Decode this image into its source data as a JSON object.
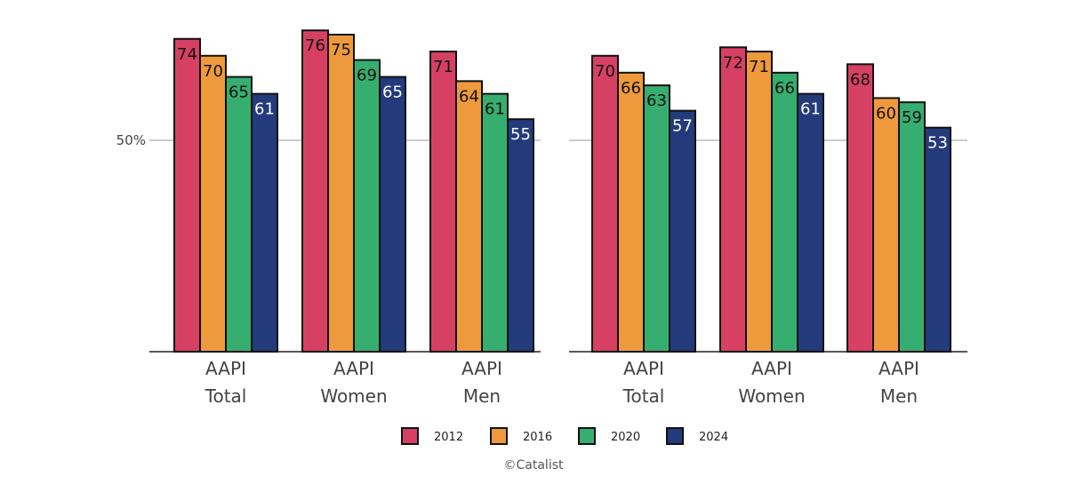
{
  "colors": {
    "2012": "#d64163",
    "2016": "#ee9a3c",
    "2020": "#36ae70",
    "2024": "#233a7b",
    "gridline": "#9a9a9a",
    "axis": "#222222",
    "bar_outline": "#111111"
  },
  "chart_data": [
    {
      "type": "bar",
      "categories": [
        "AAPI Total",
        "AAPI Women",
        "AAPI Men"
      ],
      "series": [
        {
          "name": "2012",
          "values": [
            74,
            76,
            71
          ]
        },
        {
          "name": "2016",
          "values": [
            70,
            75,
            64
          ]
        },
        {
          "name": "2020",
          "values": [
            65,
            69,
            61
          ]
        },
        {
          "name": "2024",
          "values": [
            61,
            65,
            55
          ]
        }
      ],
      "ylim": [
        0,
        100
      ],
      "yticks": [
        {
          "value": 50,
          "label": "50%"
        }
      ],
      "grid": true
    },
    {
      "type": "bar",
      "categories": [
        "AAPI Total",
        "AAPI Women",
        "AAPI Men"
      ],
      "series": [
        {
          "name": "2012",
          "values": [
            70,
            72,
            68
          ]
        },
        {
          "name": "2016",
          "values": [
            66,
            71,
            60
          ]
        },
        {
          "name": "2020",
          "values": [
            63,
            66,
            59
          ]
        },
        {
          "name": "2024",
          "values": [
            57,
            61,
            53
          ]
        }
      ],
      "ylim": [
        0,
        100
      ],
      "yticks": [],
      "grid": true
    }
  ],
  "legend": {
    "position": "bottom",
    "items": [
      "2012",
      "2016",
      "2020",
      "2024"
    ]
  },
  "credit": "©Catalist"
}
